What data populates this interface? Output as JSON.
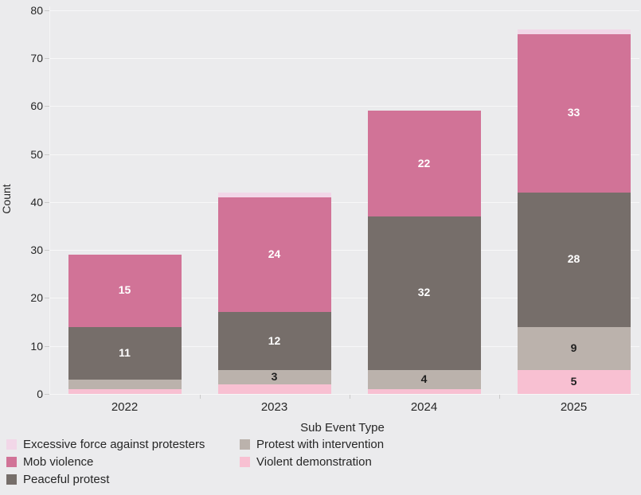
{
  "chart_data": {
    "type": "bar",
    "stacked": true,
    "title": "",
    "xlabel": "Sub Event Type",
    "ylabel": "Count",
    "ylim": [
      0,
      80
    ],
    "y_ticks": [
      "0",
      "10",
      "20",
      "30",
      "40",
      "50",
      "60",
      "70",
      "80"
    ],
    "grid": "horizontal",
    "legend_position": "bottom",
    "categories": [
      "2022",
      "2023",
      "2024",
      "2025"
    ],
    "series": [
      {
        "name": "Violent demonstration",
        "color": "#f8c0d2",
        "label_color": "#1f1f1f",
        "values": [
          1,
          2,
          1,
          5
        ],
        "labels": [
          "",
          "",
          "",
          "5"
        ]
      },
      {
        "name": "Protest with intervention",
        "color": "#bbb2ac",
        "label_color": "#1f1f1f",
        "values": [
          2,
          3,
          4,
          9
        ],
        "labels": [
          "",
          "3",
          "4",
          "9"
        ]
      },
      {
        "name": "Peaceful protest",
        "color": "#766e6a",
        "label_color": "#ffffff",
        "values": [
          11,
          12,
          32,
          28
        ],
        "labels": [
          "11",
          "12",
          "32",
          "28"
        ]
      },
      {
        "name": "Mob violence",
        "color": "#d17397",
        "label_color": "#ffffff",
        "values": [
          15,
          24,
          22,
          33
        ],
        "labels": [
          "15",
          "24",
          "22",
          "33"
        ]
      },
      {
        "name": "Excessive force against protesters",
        "color": "#f2d7e8",
        "label_color": "#1f1f1f",
        "values": [
          0,
          1,
          0,
          1
        ],
        "labels": [
          "",
          "",
          "",
          ""
        ]
      }
    ],
    "totals": [
      29,
      42,
      59,
      76
    ],
    "legend_columns": [
      [
        {
          "name": "Excessive force against protesters",
          "color": "#f2d7e8"
        },
        {
          "name": "Mob violence",
          "color": "#d17397"
        },
        {
          "name": "Peaceful protest",
          "color": "#766e6a"
        }
      ],
      [
        {
          "name": "Protest with intervention",
          "color": "#bbb2ac"
        },
        {
          "name": "Violent demonstration",
          "color": "#f8c0d2"
        }
      ]
    ]
  }
}
